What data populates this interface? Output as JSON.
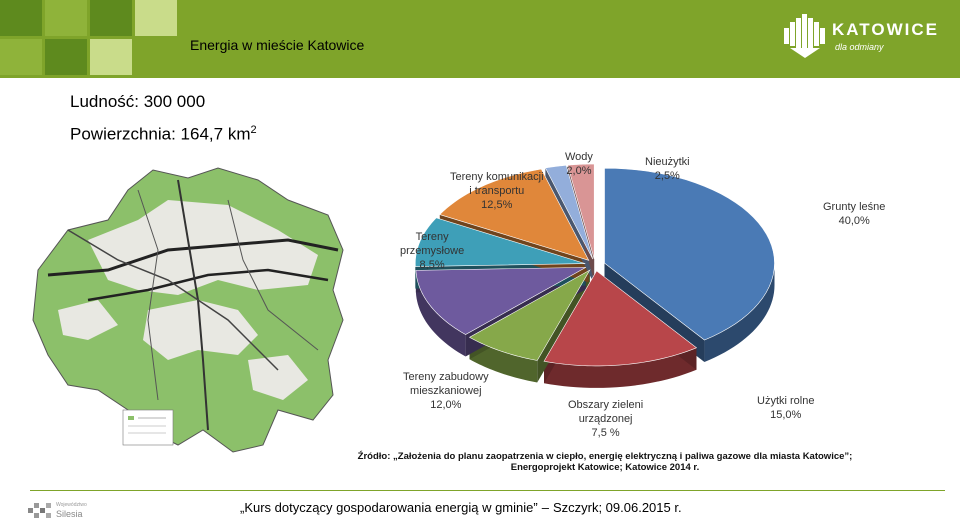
{
  "header": {
    "title": "Energia w mieście Katowice"
  },
  "logo": {
    "name": "KATOWICE",
    "tagline": "dla odmiany"
  },
  "stats": {
    "population": "Ludność: 300 000",
    "area_label": "Powierzchnia: 164,7 km",
    "area_sup": "2"
  },
  "chart_data": {
    "type": "pie",
    "slices": [
      {
        "label_lines": [
          "Grunty leśne"
        ],
        "value": 40.0,
        "value_text": "40,0%",
        "color": "#4a7ab5"
      },
      {
        "label_lines": [
          "Użytki rolne"
        ],
        "value": 15.0,
        "value_text": "15,0%",
        "color": "#b8464a"
      },
      {
        "label_lines": [
          "Obszary zieleni",
          "urządzonej"
        ],
        "value": 7.5,
        "value_text": "7,5   %",
        "color": "#86a84a"
      },
      {
        "label_lines": [
          "Tereny zabudowy",
          "mieszkaniowej"
        ],
        "value": 12.0,
        "value_text": "12,0%",
        "color": "#6e5a9e"
      },
      {
        "label_lines": [
          "Tereny",
          "przemysłowe"
        ],
        "value": 8.5,
        "value_text": "8,5%",
        "color": "#3e9fb8"
      },
      {
        "label_lines": [
          "Tereny komunikacji",
          "i transportu"
        ],
        "value": 12.5,
        "value_text": "12,5%",
        "color": "#e0873a"
      },
      {
        "label_lines": [
          "Wody"
        ],
        "value": 2.0,
        "value_text": "2,0%",
        "color": "#93aedb"
      },
      {
        "label_lines": [
          "Nieużytki"
        ],
        "value": 2.5,
        "value_text": "2,5%",
        "color": "#d99595"
      }
    ]
  },
  "source": {
    "line1": "Źródło: „Założenia do planu zaopatrzenia w ciepło, energię elektryczną i paliwa gazowe dla miasta Katowice”;",
    "line2": "Energoprojekt Katowice; Katowice 2014 r."
  },
  "footer": {
    "course": "„Kurs dotyczący gospodarowania energią w gminie”",
    "dash": "–",
    "place_date": "Szczyrk; 09.06.2015 r."
  },
  "partner": {
    "small": "Województwo",
    "name": "Silesia"
  }
}
